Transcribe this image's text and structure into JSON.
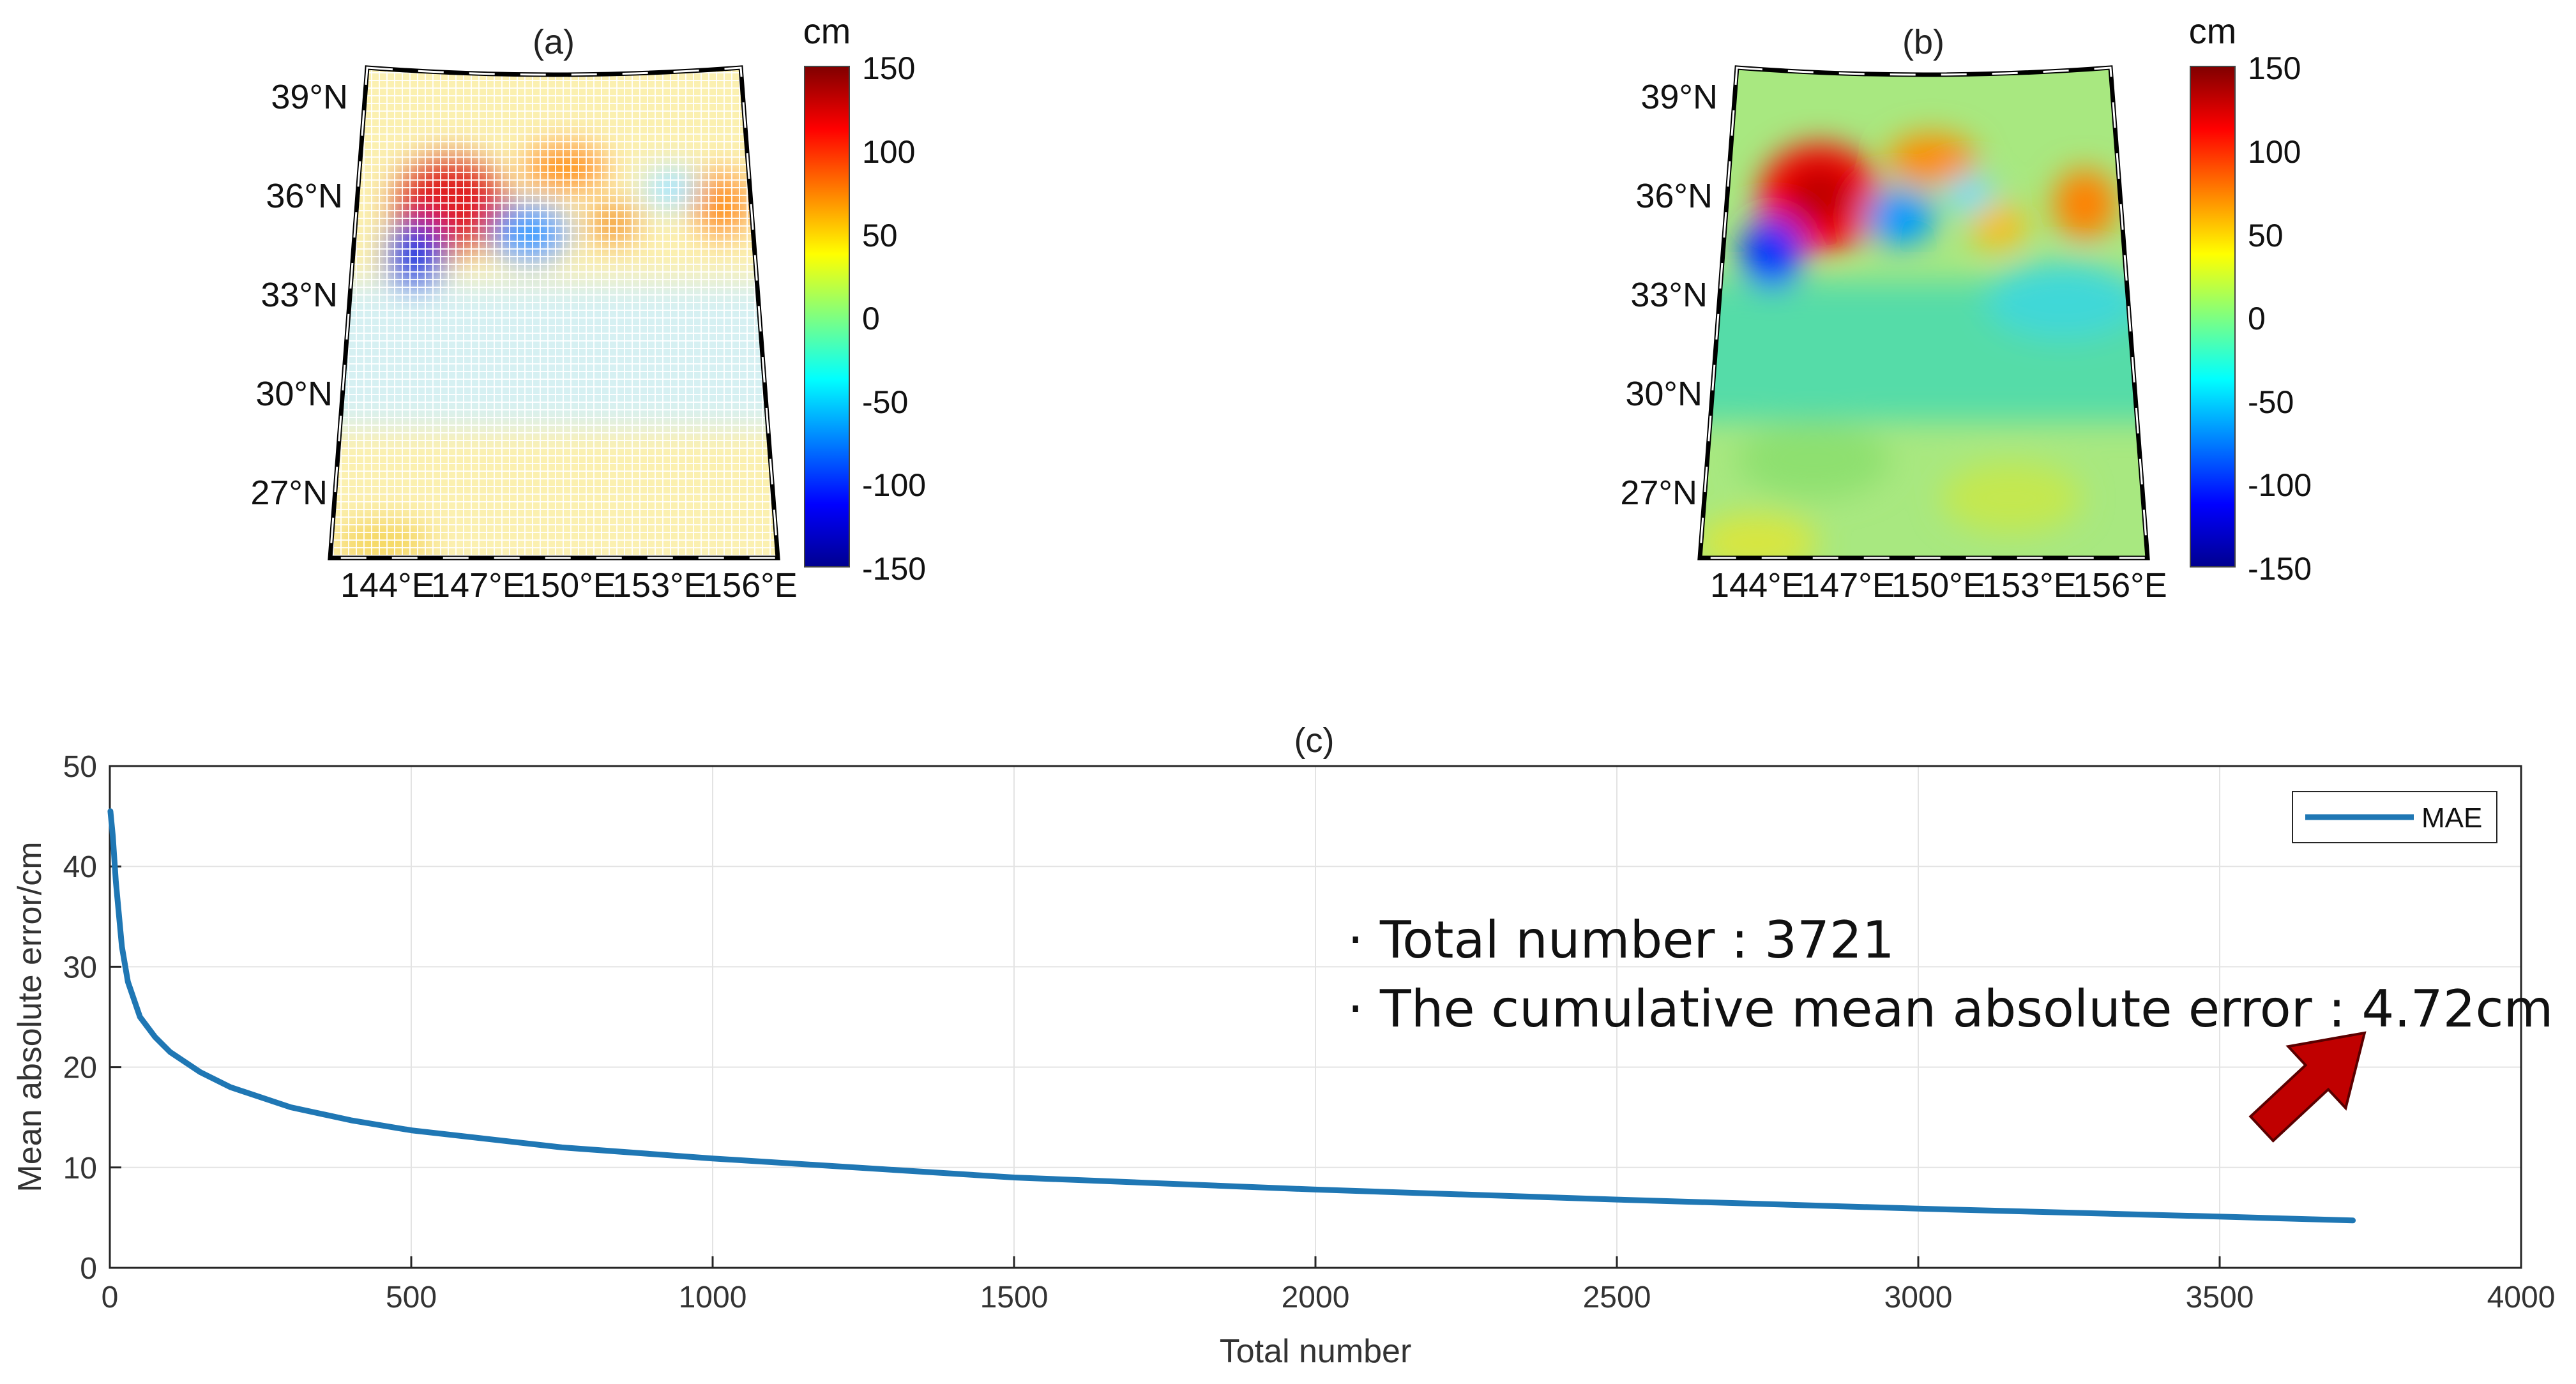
{
  "maps": [
    {
      "panel_label": "(a)",
      "style": "vector-dots",
      "lat_labels": [
        "39°N",
        "36°N",
        "33°N",
        "30°N",
        "27°N"
      ],
      "lon_labels": [
        "144°E",
        "147°E",
        "150°E",
        "153°E",
        "156°E"
      ],
      "colorbar": {
        "unit": "cm",
        "ticks": [
          "150",
          "100",
          "50",
          "0",
          "-50",
          "-100",
          "-150"
        ],
        "range": [
          -150,
          150
        ]
      }
    },
    {
      "panel_label": "(b)",
      "style": "smooth",
      "lat_labels": [
        "39°N",
        "36°N",
        "33°N",
        "30°N",
        "27°N"
      ],
      "lon_labels": [
        "144°E",
        "147°E",
        "150°E",
        "153°E",
        "156°E"
      ],
      "colorbar": {
        "unit": "cm",
        "ticks": [
          "150",
          "100",
          "50",
          "0",
          "-50",
          "-100",
          "-150"
        ],
        "range": [
          -150,
          150
        ]
      }
    }
  ],
  "chart_data": {
    "type": "line",
    "title": "(c)",
    "xlabel": "Total number",
    "ylabel": "Mean absolute error/cm",
    "xlim": [
      0,
      4000
    ],
    "ylim": [
      0,
      50
    ],
    "grid": true,
    "x_ticks": [
      "0",
      "500",
      "1000",
      "1500",
      "2000",
      "2500",
      "3000",
      "3500",
      "4000"
    ],
    "y_ticks": [
      "0",
      "10",
      "20",
      "30",
      "40",
      "50"
    ],
    "legend": {
      "position": "top-right",
      "entries": [
        "MAE"
      ]
    },
    "series": [
      {
        "name": "MAE",
        "color": "#1f77b4",
        "x": [
          1,
          5,
          10,
          20,
          30,
          50,
          75,
          100,
          150,
          200,
          300,
          400,
          500,
          750,
          1000,
          1500,
          2000,
          2500,
          3000,
          3500,
          3721
        ],
        "y": [
          45.5,
          43.0,
          38.5,
          32.0,
          28.5,
          25.0,
          23.0,
          21.5,
          19.5,
          18.0,
          16.0,
          14.7,
          13.7,
          12.0,
          10.9,
          9.0,
          7.8,
          6.8,
          5.9,
          5.1,
          4.72
        ]
      }
    ],
    "annotations": [
      "· Total number : 3721",
      "· The cumulative mean absolute error : 4.72cm"
    ],
    "arrow_color": "#c00000"
  }
}
